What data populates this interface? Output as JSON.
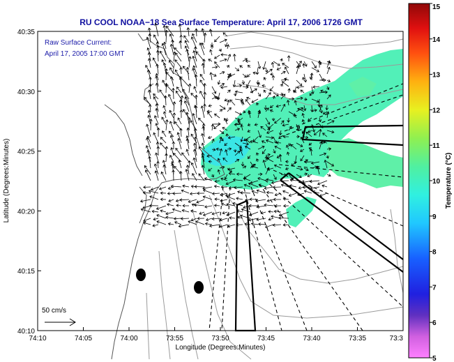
{
  "title": "RU COOL  NOAA−18  Sea Surface Temperature:  April 17, 2006 1726 GMT",
  "annotation": {
    "line1": "Raw Surface Current:",
    "line2": "April 17, 2005 17:00 GMT"
  },
  "scale_label": "50 cm/s",
  "axes": {
    "xlabel": "Longitude (Degrees:Minutes)",
    "ylabel": "Latitude (Degrees:Minutes)",
    "xticks": [
      "74:10",
      "74:05",
      "74:00",
      "73:55",
      "73:50",
      "73:45",
      "73:40",
      "73:35",
      "73:3"
    ],
    "yticks": [
      "40:35",
      "40:30",
      "40:25",
      "40:20",
      "40:15",
      "40:10"
    ]
  },
  "colorbar": {
    "label": "Temperature (°C)",
    "ticks": [
      "15",
      "14",
      "13",
      "12",
      "11",
      "10",
      "9",
      "8",
      "7",
      "6",
      "5"
    ],
    "min": 5,
    "max": 15
  },
  "colors": {
    "title": "#1010a0",
    "annotation": "#1a1aa8",
    "sst_main": "#52f0b8",
    "sst_alt": "#5ff0a8",
    "sst_cool": "#3ae6e6"
  },
  "chart_data": {
    "type": "heatmap",
    "variable": "Sea Surface Temperature",
    "unit": "°C",
    "xlim": [
      "74:10",
      "73:30"
    ],
    "ylim": [
      "40:10",
      "40:35"
    ],
    "observed_range": [
      8,
      10
    ]
  }
}
